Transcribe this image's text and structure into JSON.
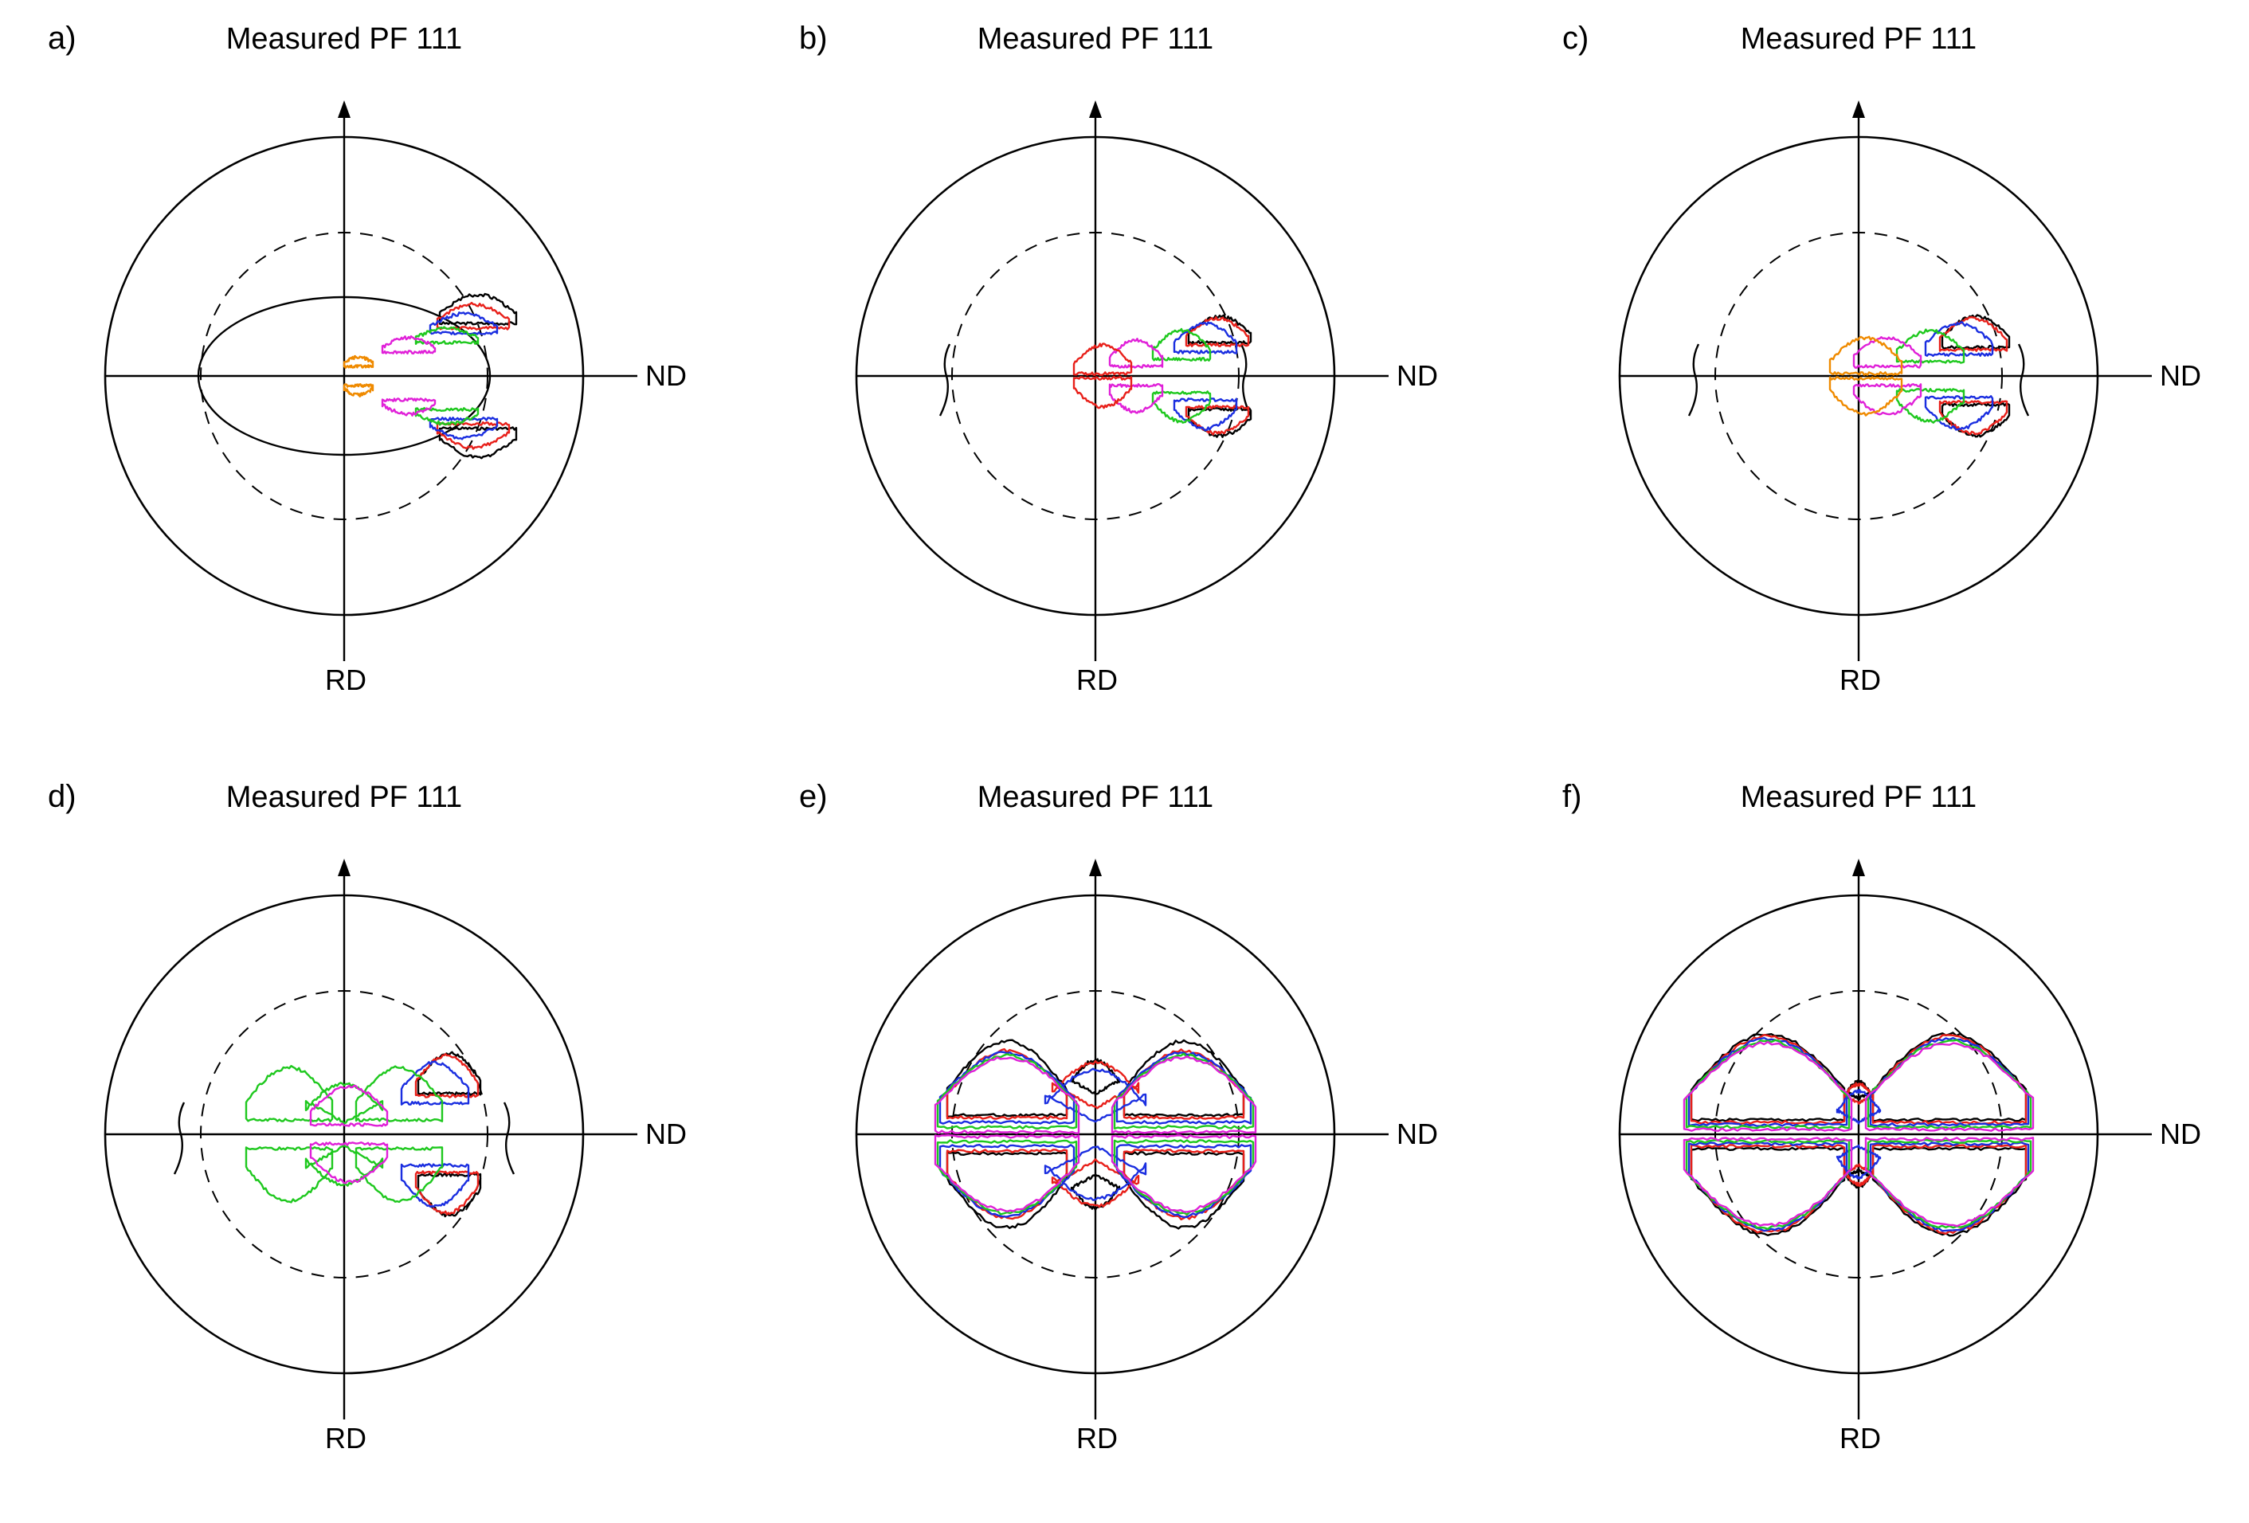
{
  "figure": {
    "panels": [
      {
        "letter": "a)",
        "title": "Measured PF 111",
        "axis_right": "ND",
        "axis_bottom": "RD",
        "contours": [
          {
            "color": "#000000",
            "lobes": [
              [
                0.56,
                0.22,
                0.16,
                0.34
              ]
            ],
            "extra": "ring"
          },
          {
            "color": "#e8201a",
            "lobes": [
              [
                0.54,
                0.2,
                0.15,
                0.3
              ]
            ]
          },
          {
            "color": "#1a2ee0",
            "lobes": [
              [
                0.5,
                0.18,
                0.14,
                0.26
              ]
            ]
          },
          {
            "color": "#1ec81e",
            "lobes": [
              [
                0.43,
                0.14,
                0.13,
                0.2
              ]
            ]
          },
          {
            "color": "#e020d8",
            "lobes": [
              [
                0.27,
                0.1,
                0.11,
                0.16
              ]
            ]
          },
          {
            "color": "#ef8a00",
            "lobes": [
              [
                0.06,
                0.04,
                0.06,
                0.08
              ]
            ]
          }
        ]
      },
      {
        "letter": "b)",
        "title": "Measured PF 111",
        "axis_right": "ND",
        "axis_bottom": "RD",
        "contours": [
          {
            "color": "#000000",
            "lobes": [
              [
                0.52,
                0.14,
                0.13,
                0.25
              ]
            ],
            "extra": "arcs"
          },
          {
            "color": "#e8201a",
            "lobes": [
              [
                0.51,
                0.13,
                0.13,
                0.24
              ]
            ]
          },
          {
            "color": "#1a2ee0",
            "lobes": [
              [
                0.46,
                0.1,
                0.13,
                0.22
              ]
            ]
          },
          {
            "color": "#1ec81e",
            "lobes": [
              [
                0.36,
                0.07,
                0.12,
                0.19
              ]
            ]
          },
          {
            "color": "#e020d8",
            "lobes": [
              [
                0.17,
                0.04,
                0.11,
                0.15
              ]
            ]
          },
          {
            "color": "#e8201a",
            "lobes": [
              [
                0.03,
                0.01,
                0.12,
                0.13
              ]
            ]
          }
        ]
      },
      {
        "letter": "c)",
        "title": "Measured PF 111",
        "axis_right": "ND",
        "axis_bottom": "RD",
        "contours": [
          {
            "color": "#000000",
            "lobes": [
              [
                0.49,
                0.12,
                0.14,
                0.25
              ]
            ],
            "extra": "stubs"
          },
          {
            "color": "#e8201a",
            "lobes": [
              [
                0.48,
                0.11,
                0.14,
                0.24
              ]
            ]
          },
          {
            "color": "#1a2ee0",
            "lobes": [
              [
                0.42,
                0.09,
                0.14,
                0.22
              ]
            ]
          },
          {
            "color": "#1ec81e",
            "lobes": [
              [
                0.3,
                0.06,
                0.14,
                0.19
              ]
            ]
          },
          {
            "color": "#e020d8",
            "lobes": [
              [
                0.12,
                0.04,
                0.14,
                0.16
              ]
            ]
          },
          {
            "color": "#ef8a00",
            "lobes": [
              [
                0.03,
                0.01,
                0.15,
                0.16
              ]
            ]
          }
        ]
      },
      {
        "letter": "d)",
        "title": "Measured PF 111",
        "axis_right": "ND",
        "axis_bottom": "RD",
        "contours": [
          {
            "color": "#000000",
            "lobes": [
              [
                0.44,
                0.17,
                0.13,
                0.34
              ]
            ],
            "extra": "stubs"
          },
          {
            "color": "#e8201a",
            "lobes": [
              [
                0.43,
                0.16,
                0.13,
                0.33
              ]
            ]
          },
          {
            "color": "#1a2ee0",
            "lobes": [
              [
                0.38,
                0.13,
                0.14,
                0.3
              ]
            ]
          },
          {
            "color": "#1ec81e",
            "lobes": [
              [
                0.23,
                0.06,
                0.18,
                0.28
              ],
              [
                -0.23,
                0.06,
                0.18,
                0.28
              ],
              [
                0.0,
                0.05,
                0.16,
                0.21
              ]
            ]
          },
          {
            "color": "#e020d8",
            "lobes": [
              [
                0.02,
                0.04,
                0.16,
                0.2
              ]
            ]
          }
        ]
      },
      {
        "letter": "e)",
        "title": "Measured PF 111",
        "axis_right": "ND",
        "axis_bottom": "RD",
        "contours": [
          {
            "color": "#000000",
            "lobes": [
              [
                0.37,
                0.08,
                0.25,
                0.39
              ],
              [
                -0.37,
                0.08,
                0.25,
                0.39
              ],
              [
                0.0,
                0.17,
                0.1,
                0.31
              ]
            ]
          },
          {
            "color": "#e8201a",
            "lobes": [
              [
                0.37,
                0.07,
                0.25,
                0.35
              ],
              [
                -0.37,
                0.07,
                0.25,
                0.35
              ],
              [
                0.0,
                0.11,
                0.18,
                0.3
              ]
            ]
          },
          {
            "color": "#1a2ee0",
            "lobes": [
              [
                0.37,
                0.05,
                0.28,
                0.34
              ],
              [
                -0.37,
                0.05,
                0.28,
                0.34
              ],
              [
                0.0,
                0.05,
                0.21,
                0.27
              ]
            ]
          },
          {
            "color": "#1ec81e",
            "lobes": [
              [
                0.37,
                0.03,
                0.29,
                0.33
              ],
              [
                -0.37,
                0.03,
                0.29,
                0.33
              ]
            ]
          },
          {
            "color": "#e020d8",
            "lobes": [
              [
                0.37,
                0.01,
                0.3,
                0.32
              ],
              [
                -0.37,
                0.01,
                0.3,
                0.32
              ]
            ]
          }
        ]
      },
      {
        "letter": "f)",
        "title": "Measured PF 111",
        "axis_right": "ND",
        "axis_bottom": "RD",
        "contours": [
          {
            "color": "#000000",
            "lobes": [
              [
                0.38,
                0.06,
                0.32,
                0.42
              ],
              [
                -0.38,
                0.06,
                0.32,
                0.42
              ],
              [
                0.0,
                0.15,
                0.05,
                0.22
              ]
            ]
          },
          {
            "color": "#e8201a",
            "lobes": [
              [
                0.38,
                0.05,
                0.32,
                0.41
              ],
              [
                -0.38,
                0.05,
                0.32,
                0.41
              ],
              [
                0.0,
                0.13,
                0.06,
                0.21
              ]
            ]
          },
          {
            "color": "#1a2ee0",
            "lobes": [
              [
                0.38,
                0.04,
                0.33,
                0.4
              ],
              [
                -0.38,
                0.04,
                0.33,
                0.4
              ],
              [
                0.0,
                0.05,
                0.09,
                0.18
              ]
            ]
          },
          {
            "color": "#1ec81e",
            "lobes": [
              [
                0.38,
                0.03,
                0.34,
                0.39
              ],
              [
                -0.38,
                0.03,
                0.34,
                0.39
              ]
            ]
          },
          {
            "color": "#e020d8",
            "lobes": [
              [
                0.38,
                0.02,
                0.35,
                0.38
              ],
              [
                -0.38,
                0.02,
                0.35,
                0.38
              ]
            ]
          }
        ]
      }
    ]
  }
}
